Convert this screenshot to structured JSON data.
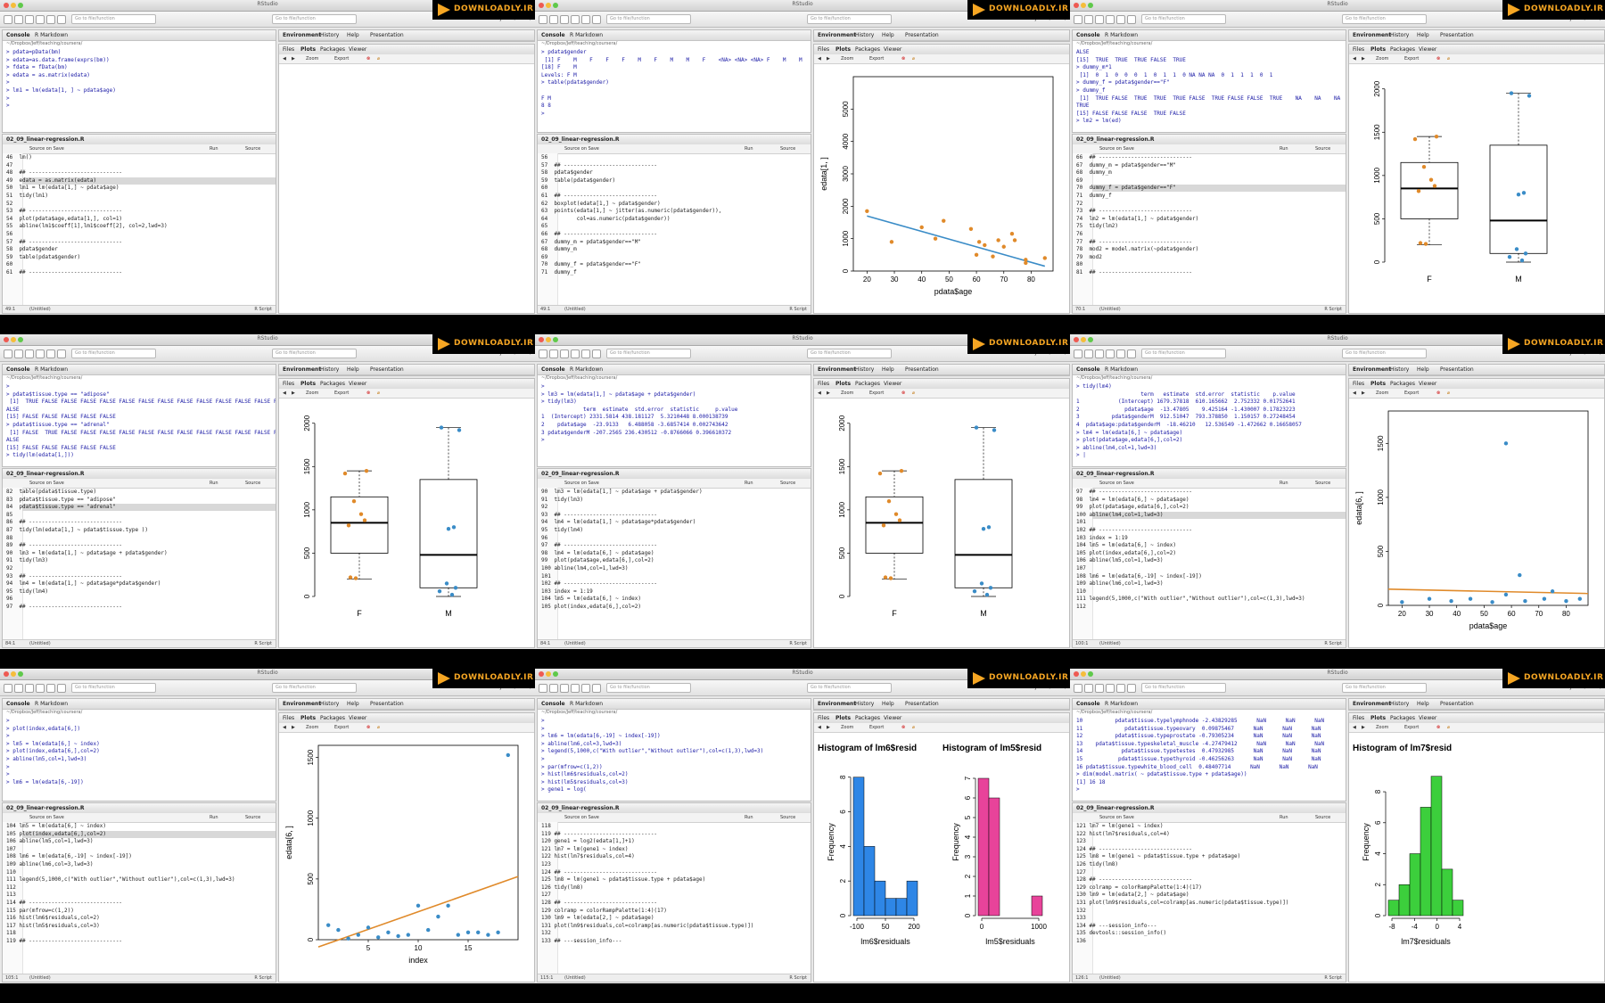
{
  "common": {
    "window_title": "RStudio",
    "goto_placeholder": "Go to file/function",
    "project": "Project: (None)",
    "console_tab": "Console",
    "rmarkdown_tab": "R Markdown",
    "console_path": "~/Dropbox/Jeff/teaching/coursera/",
    "env_tabs": [
      "Environment",
      "History",
      "Help",
      "Presentation"
    ],
    "files_tabs": [
      "Files",
      "Plots",
      "Packages",
      "Viewer"
    ],
    "zoom": "Zoom",
    "export": "Export",
    "script_file": "02_09_linear-regression.R",
    "source_on_save": "Source on Save",
    "run": "Run",
    "source": "Source",
    "untitled": "(Untitled)",
    "r_script": "R Script",
    "logo_text": "DOWNLOADLY.IR"
  },
  "frames": [
    {
      "console_lines": [
        "> pdata=pData(bm)",
        "> edata=as.data.frame(exprs(bm))",
        "> fdata = fData(bm)",
        "> edata = as.matrix(edata)",
        ">",
        "> lm1 = lm(edata[1, ] ~ pdata$age)",
        ">",
        ">"
      ],
      "script_lines": [
        "46  lm()",
        "47",
        "48  ## -----------------------------",
        "49  edata = as.matrix(edata)",
        "50  lm1 = lm(edata[1,] ~ pdata$age)",
        "51  tidy(lm1)",
        "52",
        "53  ## -----------------------------",
        "54  plot(pdata$age,edata[1,], col=1)",
        "55  abline(lm1$coeff[1],lm1$coeff[2], col=2,lwd=3)",
        "56",
        "57  ## -----------------------------",
        "58  pdata$gender",
        "59  table(pdata$gender)",
        "60",
        "61  ## -----------------------------"
      ],
      "hl_line": 3,
      "cursor": "49:1",
      "plot": "empty"
    },
    {
      "console_lines": [
        "> pdata$gender",
        " [1] F    M    F    F    F    M    F    M    M    F    <NA> <NA> <NA> F    M    M",
        "[18] F    M",
        "Levels: F M",
        "> table(pdata$gender)",
        "",
        "F M",
        "8 8",
        ">"
      ],
      "script_lines": [
        "56",
        "57  ## -----------------------------",
        "58  pdata$gender",
        "59  table(pdata$gender)",
        "60",
        "61  ## -----------------------------",
        "62  boxplot(edata[1,] ~ pdata$gender)",
        "63  points(edata[1,] ~ jitter(as.numeric(pdata$gender)),",
        "64         col=as.numeric(pdata$gender))",
        "65",
        "66  ## -----------------------------",
        "67  dummy_m = pdata$gender==\"M\"",
        "68  dummy_m",
        "69",
        "70  dummy_f = pdata$gender==\"F\"",
        "71  dummy_f"
      ],
      "hl_line": -1,
      "cursor": "49:1",
      "plot": "scatter-age",
      "plot_labels": {
        "xlabel": "pdata$age",
        "ylabel": "edata[1, ]",
        "yticks": [
          "0",
          "1000",
          "2000",
          "3000",
          "4000",
          "5000"
        ],
        "xticks": [
          "20",
          "30",
          "40",
          "50",
          "60",
          "70",
          "80"
        ]
      }
    },
    {
      "console_lines": [
        "ALSE",
        "[15]  TRUE  TRUE  TRUE FALSE  TRUE",
        "> dummy_m*1",
        " [1]  0  1  0  0  0  1  0  1  1  0 NA NA NA  0  1  1  1  0  1",
        "> dummy_f = pdata$gender==\"F\"",
        "> dummy_f",
        " [1]  TRUE FALSE  TRUE  TRUE  TRUE FALSE  TRUE FALSE FALSE  TRUE    NA    NA    NA",
        "TRUE",
        "[15] FALSE FALSE FALSE  TRUE FALSE",
        "> lm2 = lm(ed)"
      ],
      "script_lines": [
        "66  ## -----------------------------",
        "67  dummy_m = pdata$gender==\"M\"",
        "68  dummy_m",
        "69",
        "70  dummy_f = pdata$gender==\"F\"",
        "71  dummy_f",
        "72",
        "73  ## -----------------------------",
        "74  lm2 = lm(edata[1,] ~ pdata$gender)",
        "75  tidy(lm2)",
        "76",
        "77  ## -----------------------------",
        "78  mod2 = model.matrix(~pdata$gender)",
        "79  mod2",
        "80",
        "81  ## -----------------------------"
      ],
      "hl_line": 4,
      "cursor": "70:1",
      "plot": "boxplot",
      "plot_labels": {
        "xticks": [
          "F",
          "M"
        ],
        "yticks": [
          "0",
          "500",
          "1000",
          "1500",
          "2000"
        ]
      }
    },
    {
      "console_lines": [
        ">",
        "> pdata$tissue.type == \"adipose\"",
        " [1]  TRUE FALSE FALSE FALSE FALSE FALSE FALSE FALSE FALSE FALSE FALSE FALSE FALSE F",
        "ALSE",
        "[15] FALSE FALSE FALSE FALSE FALSE",
        "> pdata$tissue.type == \"adrenal\"",
        " [1] FALSE  TRUE FALSE FALSE FALSE FALSE FALSE FALSE FALSE FALSE FALSE FALSE FALSE F",
        "ALSE",
        "[15] FALSE FALSE FALSE FALSE FALSE",
        "> tidy(lm(edata[1,]))"
      ],
      "script_lines": [
        "82  table(pdata$tissue.type)",
        "83  pdata$tissue.type == \"adipose\"",
        "84  pdata$tissue.type == \"adrenal\"",
        "85",
        "86  ## -----------------------------",
        "87  tidy(lm(edata[1,] ~ pdata$tissue.type ))",
        "88",
        "89  ## -----------------------------",
        "90  lm3 = lm(edata[1,] ~ pdata$age + pdata$gender)",
        "91  tidy(lm3)",
        "92",
        "93  ## -----------------------------",
        "94  lm4 = lm(edata[1,] ~ pdata$age*pdata$gender)",
        "95  tidy(lm4)",
        "96",
        "97  ## -----------------------------"
      ],
      "hl_line": 2,
      "cursor": "84:1",
      "plot": "boxplot",
      "plot_labels": {
        "xticks": [
          "F",
          "M"
        ],
        "yticks": [
          "0",
          "500",
          "1000",
          "1500",
          "2000"
        ]
      }
    },
    {
      "console_lines": [
        ">",
        "> lm3 = lm(edata[1,] ~ pdata$age + pdata$gender)",
        "> tidy(lm3)",
        "             term  estimate  std.error  statistic     p.value",
        "1  (Intercept) 2331.5814 438.181127  5.3210448 8.000138739",
        "2    pdata$age  -23.9133   6.488058 -3.6857414 0.002743642",
        "3 pdata$genderM -207.2565 236.430512 -0.8766066 0.396610372",
        ">"
      ],
      "script_lines": [
        "90  lm3 = lm(edata[1,] ~ pdata$age + pdata$gender)",
        "91  tidy(lm3)",
        "92",
        "93  ## -----------------------------",
        "94  lm4 = lm(edata[1,] ~ pdata$age*pdata$gender)",
        "95  tidy(lm4)",
        "96",
        "97  ## -----------------------------",
        "98  lm4 = lm(edata[6,] ~ pdata$age)",
        "99  plot(pdata$age,edata[6,],col=2)",
        "100 abline(lm4,col=1,lwd=3)",
        "101",
        "102 ## -----------------------------",
        "103 index = 1:19",
        "104 lm5 = lm(edata[6,] ~ index)",
        "105 plot(index,edata[6,],col=2)"
      ],
      "hl_line": -1,
      "cursor": "84:1",
      "plot": "boxplot",
      "plot_labels": {
        "xticks": [
          "F",
          "M"
        ],
        "yticks": [
          "0",
          "500",
          "1000",
          "1500",
          "2000"
        ]
      }
    },
    {
      "console_lines": [
        "> tidy(lm4)",
        "                    term   estimate  std.error  statistic    p.value",
        "1            (Intercept) 1679.37818  610.165662  2.752332 0.01752641",
        "2              pdata$age  -13.47805    9.425164 -1.430007 0.17823223",
        "3          pdata$genderM  912.51047  793.378850  1.150157 0.27248454",
        "4  pdata$age:pdata$genderM  -18.46210   12.536549 -1.472662 0.16658057",
        "> lm4 = lm(edata[6,] ~ pdata$age)",
        "> plot(pdata$age,edata[6,],col=2)",
        "> abline(lm4,col=1,lwd=3)",
        "> |"
      ],
      "script_lines": [
        "97  ## -----------------------------",
        "98  lm4 = lm(edata[6,] ~ pdata$age)",
        "99  plot(pdata$age,edata[6,],col=2)",
        "100 abline(lm4,col=1,lwd=3)",
        "101",
        "102 ## -----------------------------",
        "103 index = 1:19",
        "104 lm5 = lm(edata[6,] ~ index)",
        "105 plot(index,edata[6,],col=2)",
        "106 abline(lm5,col=1,lwd=3)",
        "107",
        "108 lm6 = lm(edata[6,-19] ~ index[-19])",
        "109 abline(lm6,col=1,lwd=3)",
        "110",
        "111 legend(5,1000,c(\"With outlier\",\"Without outlier\"),col=c(1,3),lwd=3)",
        "112"
      ],
      "hl_line": 3,
      "cursor": "100:1",
      "plot": "scatter-age6",
      "plot_labels": {
        "xlabel": "pdata$age",
        "ylabel": "edata[6, ]",
        "yticks": [
          "0",
          "500",
          "1000",
          "1500"
        ],
        "xticks": [
          "20",
          "30",
          "40",
          "50",
          "60",
          "70",
          "80"
        ]
      }
    },
    {
      "console_lines": [
        ">",
        "> plot(index,edata[6,])",
        ">",
        "> lm5 = lm(edata[6,] ~ index)",
        "> plot(index,edata[6,],col=2)",
        "> abline(lm5,col=1,lwd=3)",
        ">",
        ">",
        "> lm6 = lm(edata[6,-19])"
      ],
      "script_lines": [
        "104 lm5 = lm(edata[6,] ~ index)",
        "105 plot(index,edata[6,],col=2)",
        "106 abline(lm5,col=1,lwd=3)",
        "107",
        "108 lm6 = lm(edata[6,-19] ~ index[-19])",
        "109 abline(lm6,col=3,lwd=3)",
        "110",
        "111 legend(5,1000,c(\"With outlier\",\"Without outlier\"),col=c(1,3),lwd=3)",
        "112",
        "113",
        "114 ## -----------------------------",
        "115 par(mfrow=c(1,2))",
        "116 hist(lm6$residuals,col=2)",
        "117 hist(lm5$residuals,col=3)",
        "118",
        "119 ## -----------------------------"
      ],
      "hl_line": 1,
      "cursor": "105:1",
      "plot": "scatter-index",
      "plot_labels": {
        "xlabel": "index",
        "ylabel": "edata[6, ]",
        "yticks": [
          "0",
          "500",
          "1000",
          "1500"
        ],
        "xticks": [
          "5",
          "10",
          "15"
        ]
      }
    },
    {
      "console_lines": [
        ">",
        ">",
        "> lm6 = lm(edata[6,-19] ~ index[-19])",
        "> abline(lm6,col=3,lwd=3)",
        "> legend(5,1000,c(\"With outlier\",\"Without outlier\"),col=c(1,3),lwd=3)",
        ">",
        "> par(mfrow=c(1,2))",
        "> hist(lm6$residuals,col=2)",
        "> hist(lm5$residuals,col=3)",
        "> gene1 = log("
      ],
      "script_lines": [
        "118",
        "119 ## -----------------------------",
        "120 gene1 = log2(edata[1,]+1)",
        "121 lm7 = lm(gene1 ~ index)",
        "122 hist(lm7$residuals,col=4)",
        "123",
        "124 ## -----------------------------",
        "125 lm8 = lm(gene1 ~ pdata$tissue.type + pdata$age)",
        "126 tidy(lm8)",
        "127",
        "128 ## -----------------------------",
        "129 colramp = colorRampPalette(1:4)(17)",
        "130 lm9 = lm(edata[2,] ~ pdata$age)",
        "131 plot(lm9$residuals,col=colramp[as.numeric(pdata$tissue.type)])",
        "132",
        "133 ## ---session_info---"
      ],
      "hl_line": -1,
      "cursor": "115:1",
      "plot": "two-hist",
      "plot_labels": {
        "title1": "Histogram of lm6$resid",
        "title2": "Histogram of lm5$resid",
        "xlabel1": "lm6$residuals",
        "xlabel2": "lm5$residuals",
        "ylabel": "Frequency",
        "xticks1": [
          "-100",
          "50",
          "200"
        ],
        "xticks2": [
          "0",
          "1000"
        ],
        "yticks1": [
          "0",
          "2",
          "4",
          "6",
          "8"
        ],
        "yticks2": [
          "0",
          "1",
          "2",
          "3",
          "4",
          "5",
          "6",
          "7"
        ]
      }
    },
    {
      "console_lines": [
        "10          pdata$tissue.typelymphnode -2.43829285      NaN      NaN      NaN",
        "11             pdata$tissue.typeovary  0.09875467      NaN      NaN      NaN",
        "12          pdata$tissue.typeprostate -0.79305234      NaN      NaN      NaN",
        "13    pdata$tissue.typeskeletal_muscle -4.27479412      NaN      NaN      NaN",
        "14            pdata$tissue.typetestes  0.47932985      NaN      NaN      NaN",
        "15           pdata$tissue.typethyroid -0.46256263      NaN      NaN      NaN",
        "16 pdata$tissue.typewhite_blood_cell  0.48407714      NaN      NaN      NaN",
        "> dim(model.matrix( ~ pdata$tissue.type + pdata$age))",
        "[1] 16 18",
        ">"
      ],
      "script_lines": [
        "121 lm7 = lm(gene1 ~ index)",
        "122 hist(lm7$residuals,col=4)",
        "123",
        "124 ## -----------------------------",
        "125 lm8 = lm(gene1 ~ pdata$tissue.type + pdata$age)",
        "126 tidy(lm8)",
        "127",
        "128 ## -----------------------------",
        "129 colramp = colorRampPalette(1:4)(17)",
        "130 lm9 = lm(edata[2,] ~ pdata$age)",
        "131 plot(lm9$residuals,col=colramp[as.numeric(pdata$tissue.type)])",
        "132",
        "133",
        "134 ## ---session_info---",
        "135 devtools::session_info()",
        "136"
      ],
      "hl_line": -1,
      "cursor": "126:1",
      "plot": "one-hist",
      "plot_labels": {
        "title1": "Histogram of lm7$resid",
        "xlabel1": "lm7$residuals",
        "ylabel": "Frequency",
        "xticks1": [
          "-8",
          "-4",
          "0",
          "4"
        ],
        "yticks1": [
          "0",
          "2",
          "4",
          "6",
          "8"
        ]
      }
    }
  ],
  "chart_data": [
    {
      "type": "scatter",
      "xlabel": "pdata$age",
      "ylabel": "edata[1, ]",
      "x": [
        20,
        29,
        40,
        45,
        48,
        58,
        60,
        61,
        63,
        66,
        68,
        70,
        73,
        74,
        78,
        78,
        85
      ],
      "y": [
        1850,
        900,
        1350,
        1000,
        1550,
        1300,
        500,
        900,
        800,
        450,
        950,
        750,
        1150,
        950,
        350,
        250,
        400
      ],
      "ylim": [
        0,
        6000
      ],
      "fit": [
        [
          20,
          1700
        ],
        [
          85,
          150
        ]
      ]
    },
    {
      "type": "box",
      "categories": [
        "F",
        "M"
      ],
      "F": {
        "min": 200,
        "q1": 500,
        "median": 850,
        "q3": 1150,
        "max": 1450
      },
      "M": {
        "min": 0,
        "q1": 100,
        "median": 480,
        "q3": 1350,
        "max": 1950
      }
    },
    {
      "type": "scatter",
      "xlabel": "pdata$age",
      "ylabel": "edata[6, ]",
      "x": [
        20,
        30,
        38,
        45,
        53,
        58,
        58,
        63,
        65,
        72,
        75,
        80,
        85
      ],
      "y": [
        30,
        60,
        40,
        60,
        30,
        1500,
        100,
        280,
        40,
        60,
        130,
        40,
        60
      ],
      "ylim": [
        0,
        1800
      ]
    },
    {
      "type": "scatter",
      "xlabel": "index",
      "ylabel": "edata[6, ]",
      "x": [
        1,
        2,
        3,
        4,
        5,
        6,
        7,
        8,
        9,
        10,
        11,
        12,
        13,
        14,
        15,
        16,
        17,
        18,
        19
      ],
      "y": [
        120,
        80,
        10,
        40,
        100,
        20,
        60,
        30,
        40,
        280,
        80,
        190,
        280,
        40,
        60,
        60,
        40,
        60,
        1520
      ],
      "ylim": [
        0,
        1600
      ]
    },
    {
      "type": "histogram",
      "title": "Histogram of lm6$resid",
      "xlabel": "lm6$residuals",
      "ylabel": "Frequency",
      "counts": [
        8,
        4,
        2,
        1,
        1,
        2
      ]
    },
    {
      "type": "histogram",
      "title": "Histogram of lm5$resid",
      "xlabel": "lm5$residuals",
      "ylabel": "Frequency",
      "counts": [
        7,
        6,
        0,
        0,
        0,
        1
      ]
    },
    {
      "type": "histogram",
      "title": "Histogram of lm7$resid",
      "xlabel": "lm7$residuals",
      "ylabel": "Frequency",
      "counts": [
        1,
        2,
        4,
        7,
        9,
        3,
        1
      ]
    }
  ]
}
